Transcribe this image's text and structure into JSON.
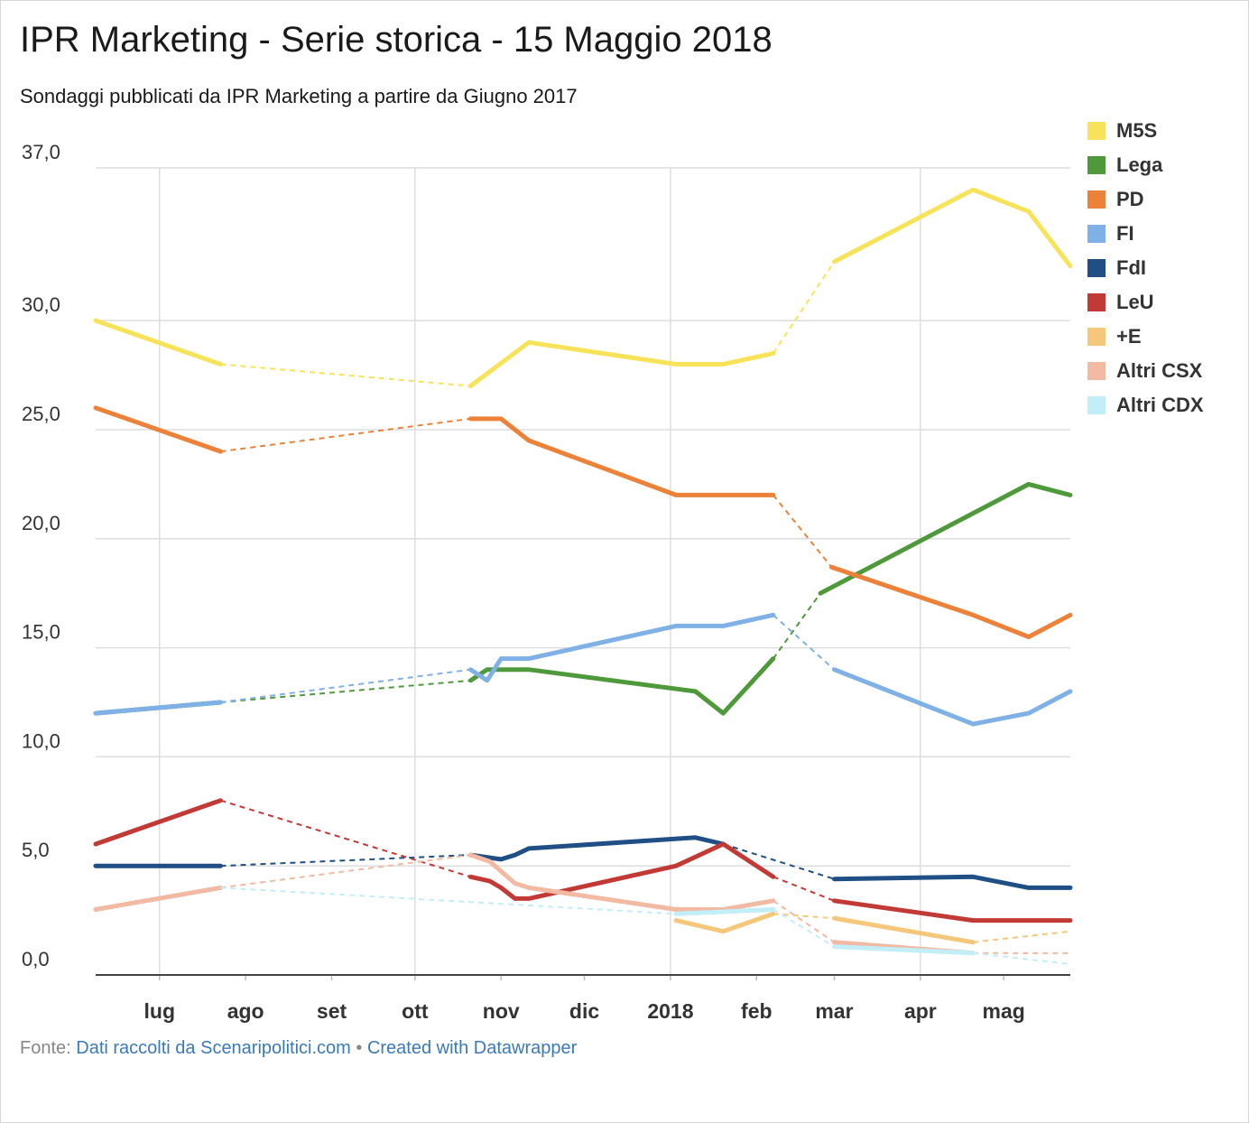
{
  "title": "IPR Marketing - Serie storica - 15 Maggio 2018",
  "subtitle": "Sondaggi pubblicati da IPR Marketing a partire da Giugno 2017",
  "footer": {
    "prefix": "Fonte: ",
    "source": "Dati raccolti da Scenaripolitici.com",
    "separator": " • ",
    "credit": "Created with Datawrapper"
  },
  "chart_data": {
    "type": "line",
    "title": "IPR Marketing - Serie storica - 15 Maggio 2018",
    "subtitle": "Sondaggi pubblicati da IPR Marketing a partire da Giugno 2017",
    "xlabel": "",
    "ylabel": "",
    "ylim": [
      0,
      37
    ],
    "y_ticks": [
      {
        "value": 37,
        "label": "37,0"
      },
      {
        "value": 30,
        "label": "30,0"
      },
      {
        "value": 25,
        "label": "25,0"
      },
      {
        "value": 20,
        "label": "20,0"
      },
      {
        "value": 15,
        "label": "15,0"
      },
      {
        "value": 10,
        "label": "10,0"
      },
      {
        "value": 5,
        "label": "5,0"
      },
      {
        "value": 0,
        "label": "0,0"
      }
    ],
    "xlim": [
      "2017-06-08",
      "2018-05-25"
    ],
    "x_ticks": [
      {
        "date": "2017-07-01",
        "label": "lug"
      },
      {
        "date": "2017-08-01",
        "label": "ago"
      },
      {
        "date": "2017-09-01",
        "label": "set"
      },
      {
        "date": "2017-10-01",
        "label": "ott"
      },
      {
        "date": "2017-11-01",
        "label": "nov"
      },
      {
        "date": "2017-12-01",
        "label": "dic"
      },
      {
        "date": "2018-01-01",
        "label": "2018"
      },
      {
        "date": "2018-02-01",
        "label": "feb"
      },
      {
        "date": "2018-03-01",
        "label": "mar"
      },
      {
        "date": "2018-04-01",
        "label": "apr"
      },
      {
        "date": "2018-05-01",
        "label": "mag"
      }
    ],
    "gridlines": true,
    "legend_position": "right",
    "note": "Dashed segments connect across gaps in the series",
    "series": [
      {
        "name": "M5S",
        "color": "#f7e35a",
        "points": [
          [
            "2017-06-08",
            30.0
          ],
          [
            "2017-07-23",
            28.0
          ],
          null,
          [
            "2017-10-21",
            27.0
          ],
          [
            "2017-11-11",
            29.0
          ],
          [
            "2018-01-03",
            28.0
          ],
          [
            "2018-01-20",
            28.0
          ],
          [
            "2018-02-07",
            28.5
          ],
          null,
          [
            "2018-03-01",
            32.7
          ],
          [
            "2018-04-20",
            36.0
          ],
          [
            "2018-05-10",
            35.0
          ],
          [
            "2018-05-25",
            32.5
          ]
        ]
      },
      {
        "name": "Lega",
        "color": "#4e9a3a",
        "points": [
          [
            "2017-06-08",
            12.0
          ],
          [
            "2017-07-23",
            12.5
          ],
          null,
          [
            "2017-10-21",
            13.5
          ],
          [
            "2017-10-27",
            14.0
          ],
          [
            "2017-11-11",
            14.0
          ],
          [
            "2018-01-10",
            13.0
          ],
          [
            "2018-01-20",
            12.0
          ],
          [
            "2018-02-07",
            14.5
          ],
          null,
          [
            "2018-02-24",
            17.5
          ],
          [
            "2018-05-10",
            22.5
          ],
          [
            "2018-05-25",
            22.0
          ]
        ]
      },
      {
        "name": "PD",
        "color": "#ec8239",
        "points": [
          [
            "2017-06-08",
            26.0
          ],
          [
            "2017-07-23",
            24.0
          ],
          null,
          [
            "2017-10-21",
            25.5
          ],
          [
            "2017-11-01",
            25.5
          ],
          [
            "2017-11-11",
            24.5
          ],
          [
            "2018-01-03",
            22.0
          ],
          [
            "2018-02-07",
            22.0
          ],
          null,
          [
            "2018-02-28",
            18.7
          ],
          [
            "2018-04-20",
            16.5
          ],
          [
            "2018-05-10",
            15.5
          ],
          [
            "2018-05-25",
            16.5
          ]
        ]
      },
      {
        "name": "FI",
        "color": "#7fb0e6",
        "points": [
          [
            "2017-06-08",
            12.0
          ],
          [
            "2017-07-23",
            12.5
          ],
          null,
          [
            "2017-10-21",
            14.0
          ],
          [
            "2017-10-27",
            13.5
          ],
          [
            "2017-11-01",
            14.5
          ],
          [
            "2017-11-11",
            14.5
          ],
          [
            "2018-01-03",
            16.0
          ],
          [
            "2018-01-20",
            16.0
          ],
          [
            "2018-02-07",
            16.5
          ],
          null,
          [
            "2018-03-01",
            14.0
          ],
          [
            "2018-04-20",
            11.5
          ],
          [
            "2018-05-10",
            12.0
          ],
          [
            "2018-05-25",
            13.0
          ]
        ]
      },
      {
        "name": "FdI",
        "color": "#1f4f85",
        "points": [
          [
            "2017-06-08",
            5.0
          ],
          [
            "2017-07-23",
            5.0
          ],
          null,
          [
            "2017-10-21",
            5.5
          ],
          [
            "2017-11-01",
            5.3
          ],
          [
            "2017-11-06",
            5.5
          ],
          [
            "2017-11-11",
            5.8
          ],
          [
            "2018-01-10",
            6.3
          ],
          [
            "2018-01-20",
            6.0
          ],
          null,
          [
            "2018-03-01",
            4.4
          ],
          [
            "2018-04-20",
            4.5
          ],
          [
            "2018-05-10",
            4.0
          ],
          [
            "2018-05-25",
            4.0
          ]
        ]
      },
      {
        "name": "LeU",
        "color": "#c23a36",
        "points": [
          [
            "2017-06-08",
            6.0
          ],
          [
            "2017-07-23",
            8.0
          ],
          null,
          [
            "2017-10-21",
            4.5
          ],
          [
            "2017-10-28",
            4.3
          ],
          [
            "2017-11-01",
            4.0
          ],
          [
            "2017-11-06",
            3.5
          ],
          [
            "2017-11-11",
            3.5
          ],
          [
            "2018-01-03",
            5.0
          ],
          [
            "2018-01-20",
            6.0
          ],
          [
            "2018-02-07",
            4.5
          ],
          null,
          [
            "2018-03-01",
            3.4
          ],
          [
            "2018-04-20",
            2.5
          ],
          [
            "2018-05-25",
            2.5
          ]
        ]
      },
      {
        "name": "+E",
        "color": "#f5c77a",
        "points": [
          [
            "2018-01-03",
            2.5
          ],
          [
            "2018-01-20",
            2.0
          ],
          [
            "2018-02-07",
            2.8
          ],
          null,
          [
            "2018-03-01",
            2.6
          ],
          [
            "2018-04-20",
            1.5
          ],
          null,
          [
            "2018-05-25",
            2.0
          ]
        ]
      },
      {
        "name": "Altri CSX",
        "color": "#f2b9a3",
        "points": [
          [
            "2017-06-08",
            3.0
          ],
          [
            "2017-07-23",
            4.0
          ],
          null,
          [
            "2017-10-21",
            5.5
          ],
          [
            "2017-10-28",
            5.2
          ],
          [
            "2017-11-06",
            4.2
          ],
          [
            "2017-11-11",
            4.0
          ],
          [
            "2018-01-03",
            3.0
          ],
          [
            "2018-01-20",
            3.0
          ],
          [
            "2018-02-07",
            3.4
          ],
          null,
          [
            "2018-03-01",
            1.5
          ],
          [
            "2018-04-20",
            1.0
          ],
          null,
          [
            "2018-05-25",
            1.0
          ]
        ]
      },
      {
        "name": "Altri CDX",
        "color": "#c2eef8",
        "points": [
          [
            "2017-07-23",
            4.0
          ],
          null,
          [
            "2018-01-03",
            2.8
          ],
          [
            "2018-02-07",
            3.0
          ],
          null,
          [
            "2018-03-01",
            1.3
          ],
          [
            "2018-04-20",
            1.0
          ],
          null,
          [
            "2018-05-25",
            0.5
          ]
        ]
      }
    ]
  }
}
